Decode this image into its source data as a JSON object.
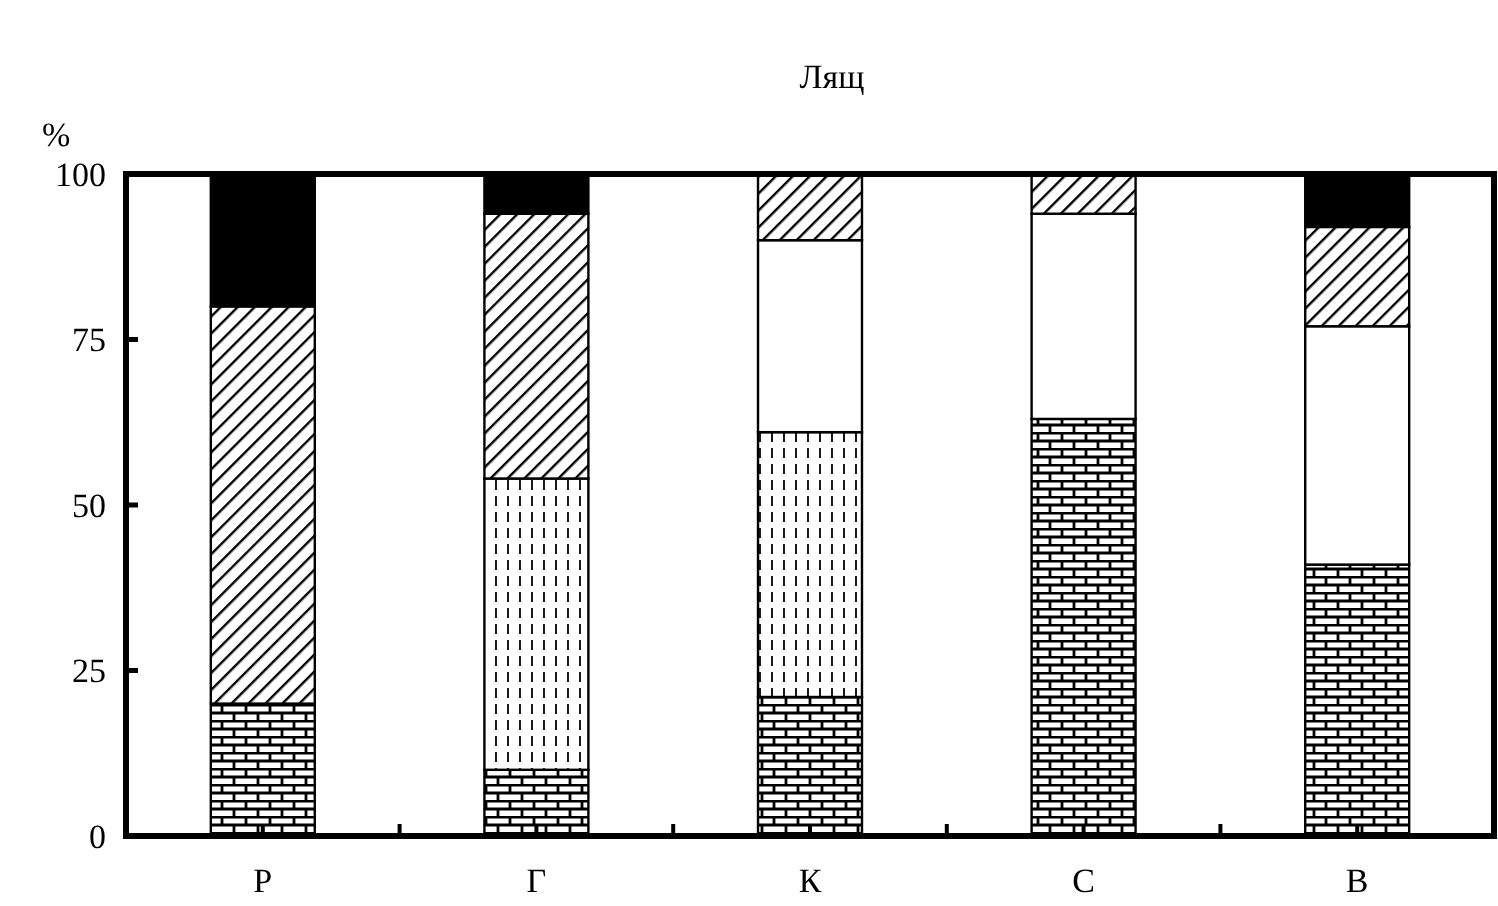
{
  "chart_data": {
    "type": "bar",
    "title": "Лящ",
    "ylabel": "%",
    "stacked": true,
    "categories": [
      "Р",
      "Г",
      "К",
      "С",
      "В"
    ],
    "series": [
      {
        "color": "#000000",
        "values": [
          20,
          10,
          21,
          63,
          41
        ]
      },
      {
        "color": "#000000",
        "values": [
          0,
          44,
          40,
          0,
          0
        ]
      },
      {
        "color": "#ffffff",
        "values": [
          0,
          0,
          29,
          31,
          36
        ]
      },
      {
        "color": "#000000",
        "values": [
          60,
          40,
          10,
          6,
          15
        ]
      },
      {
        "color": "#000000",
        "values": [
          20,
          6,
          0,
          0,
          8
        ]
      }
    ],
    "ylim": [
      0,
      100
    ],
    "yticks": [
      0,
      25,
      50,
      75,
      100
    ],
    "grid": false
  }
}
